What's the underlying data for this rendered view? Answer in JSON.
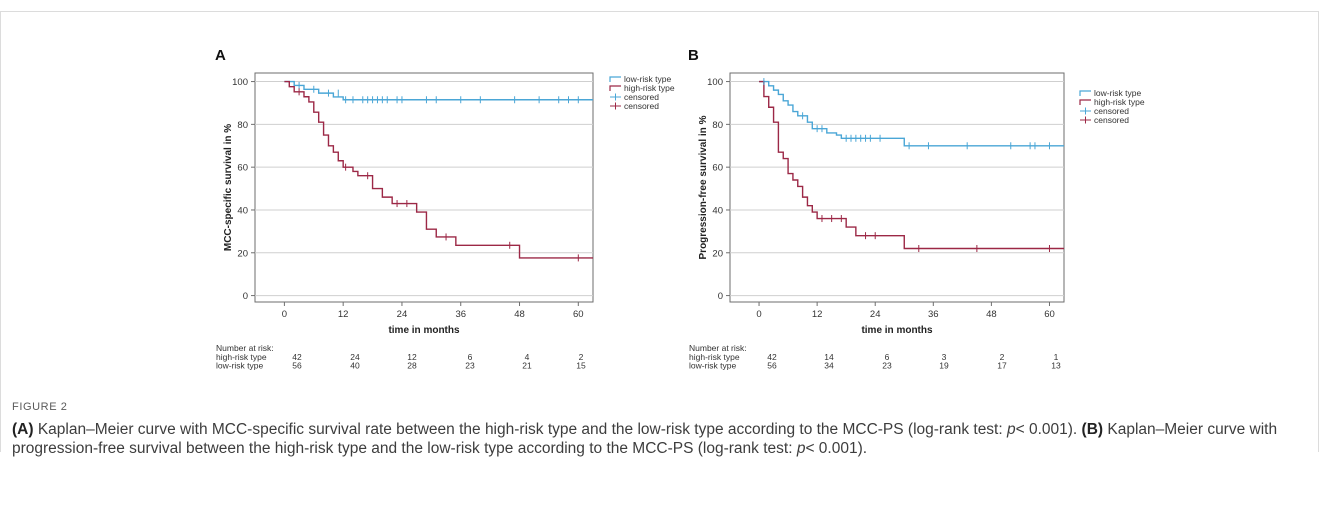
{
  "figure_label": "FIGURE 2",
  "caption": {
    "a_tag": "(A)",
    "a_text": " Kaplan–Meier curve with MCC-specific survival rate between the high-risk type and the low-risk type according to the MCC-PS (log-rank test: ",
    "a_p": "p",
    "a_tail": "< 0.001). ",
    "b_tag": "(B)",
    "b_text": " Kaplan–Meier curve with progression-free survival between the high-risk type and the low-risk type according to the MCC-PS (log-rank test: ",
    "b_p": "p",
    "b_tail": "< 0.001)."
  },
  "colors": {
    "low": "#4aa6d6",
    "high": "#9c2846",
    "grid": "#cfcfcf",
    "axis": "#6e6e6e"
  },
  "chart_data": [
    {
      "type": "line",
      "panel": "A",
      "ylabel": "MCC-specific survival in %",
      "xlabel": "time in months",
      "xlim": [
        -6,
        63
      ],
      "ylim": [
        -3,
        104
      ],
      "xticks": [
        0,
        12,
        24,
        36,
        48,
        60
      ],
      "yticks": [
        0,
        20,
        40,
        60,
        80,
        100
      ],
      "grid": true,
      "legend": [
        "low-risk type",
        "high-risk type",
        "censored",
        "censored"
      ],
      "series": [
        {
          "name": "low-risk type",
          "step": [
            [
              0,
              100
            ],
            [
              2,
              98.2
            ],
            [
              4,
              96.4
            ],
            [
              7,
              94.6
            ],
            [
              10,
              92.8
            ],
            [
              12,
              91.5
            ],
            [
              63,
              91.5
            ]
          ],
          "censored": [
            [
              3,
              98.2
            ],
            [
              6,
              96.4
            ],
            [
              9,
              94.6
            ],
            [
              11,
              94.6
            ],
            [
              12.5,
              91.5
            ],
            [
              14,
              91.5
            ],
            [
              16,
              91.5
            ],
            [
              17,
              91.5
            ],
            [
              18,
              91.5
            ],
            [
              19,
              91.5
            ],
            [
              20,
              91.5
            ],
            [
              21,
              91.5
            ],
            [
              23,
              91.5
            ],
            [
              24,
              91.5
            ],
            [
              29,
              91.5
            ],
            [
              31,
              91.5
            ],
            [
              36,
              91.5
            ],
            [
              40,
              91.5
            ],
            [
              47,
              91.5
            ],
            [
              52,
              91.5
            ],
            [
              56,
              91.5
            ],
            [
              58,
              91.5
            ],
            [
              60,
              91.5
            ]
          ]
        },
        {
          "name": "high-risk type",
          "step": [
            [
              0,
              100
            ],
            [
              1,
              97.6
            ],
            [
              2,
              95.2
            ],
            [
              4,
              92.9
            ],
            [
              5,
              90.5
            ],
            [
              6,
              85.7
            ],
            [
              7,
              81
            ],
            [
              8,
              75
            ],
            [
              9,
              70
            ],
            [
              10,
              67
            ],
            [
              11,
              63
            ],
            [
              12,
              60
            ],
            [
              14,
              58
            ],
            [
              15,
              56
            ],
            [
              18,
              50
            ],
            [
              20,
              46
            ],
            [
              22,
              43
            ],
            [
              27,
              39
            ],
            [
              29,
              31
            ],
            [
              31,
              27.4
            ],
            [
              35,
              23.5
            ],
            [
              48,
              17.6
            ],
            [
              63,
              17.6
            ]
          ]
        }
      ],
      "censored_high": [
        [
          3,
          95.2
        ],
        [
          12.5,
          60
        ],
        [
          17,
          56
        ],
        [
          23,
          43
        ],
        [
          25,
          43
        ],
        [
          33,
          27.4
        ],
        [
          46,
          23.5
        ],
        [
          60,
          17.6
        ]
      ],
      "risk_table": {
        "title": "Number at risk:",
        "rows": [
          {
            "label": "high-risk type",
            "values": [
              "42",
              "24",
              "12",
              "6",
              "4",
              "2"
            ]
          },
          {
            "label": "low-risk type",
            "values": [
              "56",
              "40",
              "28",
              "23",
              "21",
              "15"
            ]
          }
        ]
      }
    },
    {
      "type": "line",
      "panel": "B",
      "ylabel": "Progression-free survival in %",
      "xlabel": "time in months",
      "xlim": [
        -6,
        63
      ],
      "ylim": [
        -3,
        104
      ],
      "xticks": [
        0,
        12,
        24,
        36,
        48,
        60
      ],
      "yticks": [
        0,
        20,
        40,
        60,
        80,
        100
      ],
      "grid": true,
      "legend": [
        "low-risk type",
        "high-risk type",
        "censored",
        "censored"
      ],
      "series": [
        {
          "name": "low-risk type",
          "step": [
            [
              0,
              100
            ],
            [
              2,
              98
            ],
            [
              3,
              96
            ],
            [
              4,
              94
            ],
            [
              5,
              91
            ],
            [
              6,
              89
            ],
            [
              7,
              86
            ],
            [
              8,
              84
            ],
            [
              10,
              81
            ],
            [
              11,
              78
            ],
            [
              14,
              76
            ],
            [
              16,
              75
            ],
            [
              17,
              73.5
            ],
            [
              30,
              70
            ],
            [
              63,
              70
            ]
          ],
          "censored": [
            [
              1,
              100
            ],
            [
              9,
              84
            ],
            [
              12,
              78
            ],
            [
              13,
              78
            ],
            [
              18,
              73.5
            ],
            [
              19,
              73.5
            ],
            [
              20,
              73.5
            ],
            [
              21,
              73.5
            ],
            [
              22,
              73.5
            ],
            [
              23,
              73.5
            ],
            [
              25,
              73.5
            ],
            [
              31,
              70
            ],
            [
              35,
              70
            ],
            [
              43,
              70
            ],
            [
              52,
              70
            ],
            [
              56,
              70
            ],
            [
              57,
              70
            ],
            [
              60,
              70
            ]
          ]
        },
        {
          "name": "high-risk type",
          "step": [
            [
              0,
              100
            ],
            [
              1,
              93
            ],
            [
              2,
              88
            ],
            [
              3,
              81
            ],
            [
              4,
              67
            ],
            [
              5,
              64
            ],
            [
              6,
              57
            ],
            [
              7,
              54
            ],
            [
              8,
              51
            ],
            [
              9,
              46
            ],
            [
              10,
              42
            ],
            [
              11,
              39
            ],
            [
              12,
              36
            ],
            [
              18,
              32
            ],
            [
              20,
              28
            ],
            [
              30,
              22
            ],
            [
              63,
              22
            ]
          ],
          "censored": [
            [
              13,
              36
            ],
            [
              15,
              36
            ],
            [
              17,
              36
            ],
            [
              22,
              28
            ],
            [
              24,
              28
            ],
            [
              33,
              22
            ],
            [
              45,
              22
            ],
            [
              60,
              22
            ]
          ]
        }
      ],
      "risk_table": {
        "title": "Number at risk:",
        "rows": [
          {
            "label": "high-risk type",
            "values": [
              "42",
              "14",
              "6",
              "3",
              "2",
              "1"
            ]
          },
          {
            "label": "low-risk type",
            "values": [
              "56",
              "34",
              "23",
              "19",
              "17",
              "13"
            ]
          }
        ]
      }
    }
  ]
}
